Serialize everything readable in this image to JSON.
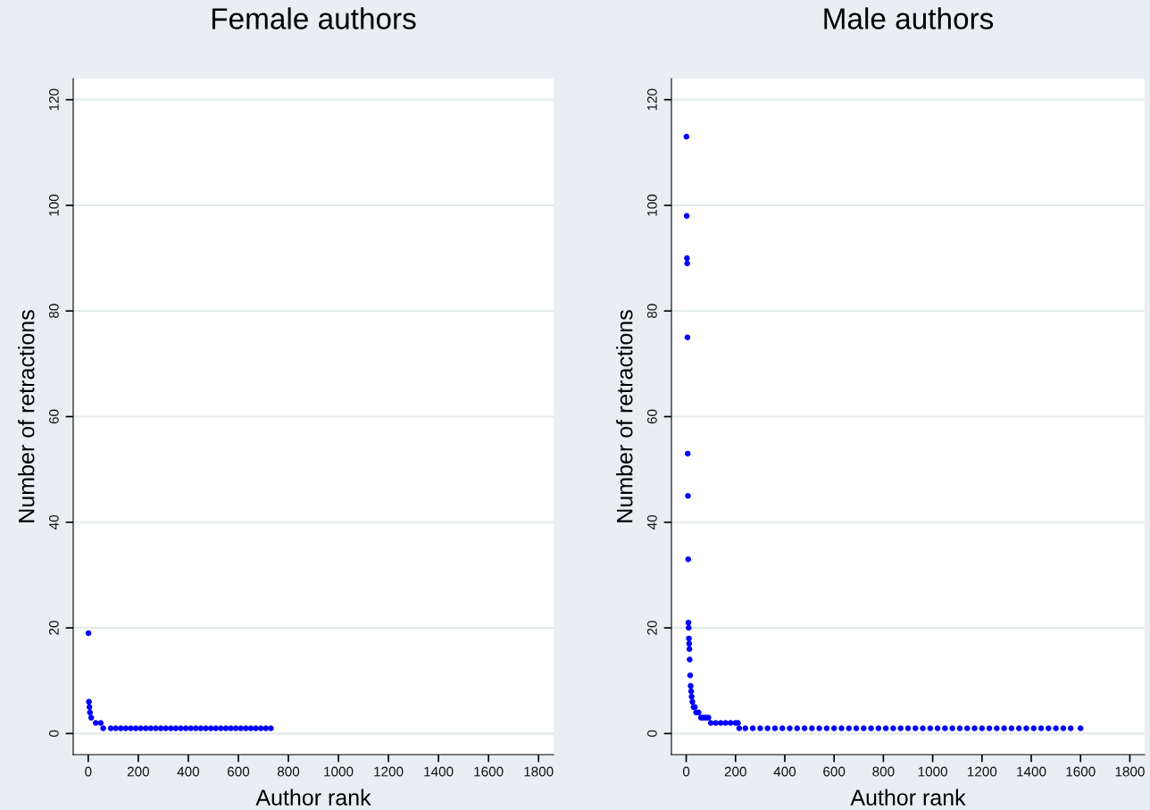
{
  "chart_data": [
    {
      "type": "scatter",
      "title": "Female authors",
      "xlabel": "Author rank",
      "ylabel": "Number of retractions",
      "xlim": [
        -60,
        1860
      ],
      "ylim": [
        -4,
        124
      ],
      "xticks": [
        0,
        200,
        400,
        600,
        800,
        1000,
        1200,
        1400,
        1600,
        1800
      ],
      "yticks": [
        0,
        20,
        40,
        60,
        80,
        100,
        120
      ],
      "grid": "y",
      "marker": "circle",
      "series": [
        {
          "color": "#0000ff",
          "x": [
            1,
            3,
            5,
            7,
            12,
            30,
            50,
            60,
            90,
            110,
            130,
            150,
            170,
            190,
            210,
            230,
            250,
            270,
            290,
            310,
            330,
            350,
            370,
            390,
            410,
            430,
            450,
            470,
            490,
            510,
            530,
            550,
            570,
            590,
            610,
            630,
            650,
            670,
            690,
            710,
            730
          ],
          "values": [
            19,
            6,
            5,
            4,
            3,
            2,
            2,
            1,
            1,
            1,
            1,
            1,
            1,
            1,
            1,
            1,
            1,
            1,
            1,
            1,
            1,
            1,
            1,
            1,
            1,
            1,
            1,
            1,
            1,
            1,
            1,
            1,
            1,
            1,
            1,
            1,
            1,
            1,
            1,
            1,
            1
          ]
        }
      ]
    },
    {
      "type": "scatter",
      "title": "Male authors",
      "xlabel": "Author rank",
      "ylabel": "Number of retractions",
      "xlim": [
        -60,
        1860
      ],
      "ylim": [
        -4,
        124
      ],
      "xticks": [
        0,
        200,
        400,
        600,
        800,
        1000,
        1200,
        1400,
        1600,
        1800
      ],
      "yticks": [
        0,
        20,
        40,
        60,
        80,
        100,
        120
      ],
      "grid": "y",
      "marker": "circle",
      "series": [
        {
          "color": "#0000ff",
          "x": [
            1,
            2,
            3,
            4,
            5,
            6,
            7,
            8,
            9,
            10,
            11,
            12,
            13,
            14,
            16,
            18,
            20,
            22,
            25,
            30,
            35,
            40,
            50,
            60,
            70,
            80,
            90,
            100,
            120,
            140,
            160,
            180,
            200,
            210,
            215,
            240,
            270,
            300,
            330,
            360,
            390,
            420,
            450,
            480,
            510,
            540,
            570,
            600,
            630,
            660,
            690,
            720,
            750,
            780,
            810,
            840,
            870,
            900,
            930,
            960,
            990,
            1020,
            1050,
            1080,
            1110,
            1140,
            1170,
            1200,
            1230,
            1260,
            1290,
            1320,
            1350,
            1380,
            1410,
            1440,
            1470,
            1500,
            1530,
            1560,
            1600
          ],
          "values": [
            113,
            98,
            90,
            89,
            75,
            53,
            45,
            33,
            21,
            20,
            18,
            17,
            16,
            14,
            11,
            9,
            8,
            7,
            6,
            5,
            5,
            4,
            4,
            3,
            3,
            3,
            3,
            2,
            2,
            2,
            2,
            2,
            2,
            2,
            1,
            1,
            1,
            1,
            1,
            1,
            1,
            1,
            1,
            1,
            1,
            1,
            1,
            1,
            1,
            1,
            1,
            1,
            1,
            1,
            1,
            1,
            1,
            1,
            1,
            1,
            1,
            1,
            1,
            1,
            1,
            1,
            1,
            1,
            1,
            1,
            1,
            1,
            1,
            1,
            1,
            1,
            1,
            1,
            1,
            1,
            1
          ]
        }
      ]
    }
  ]
}
